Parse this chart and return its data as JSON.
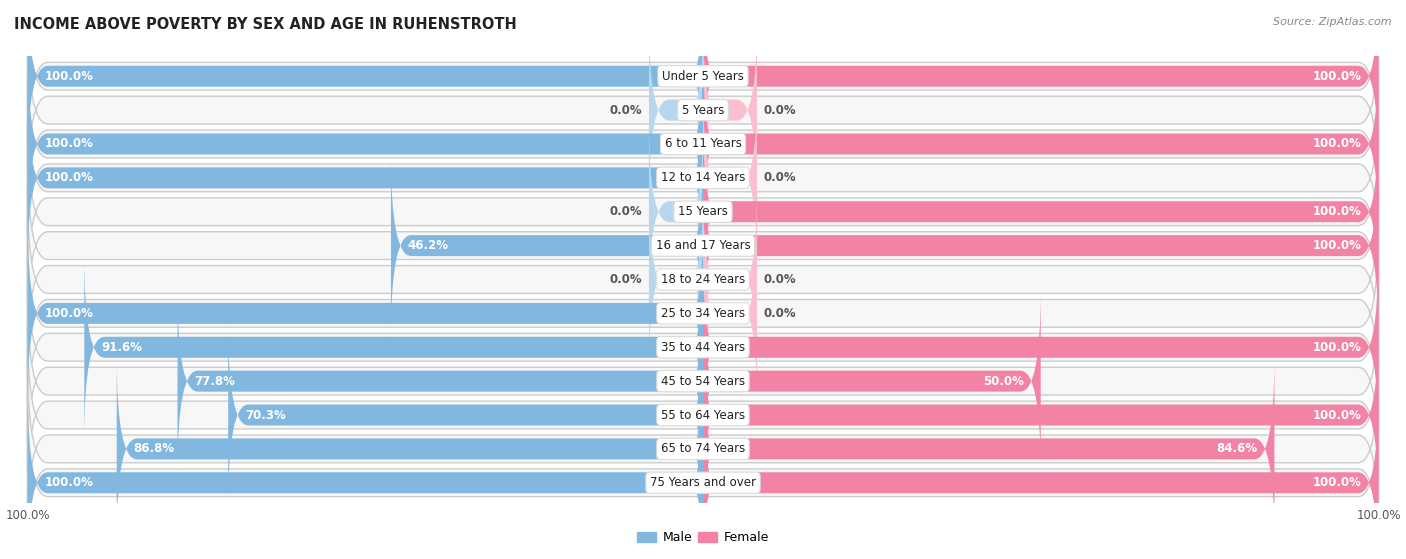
{
  "title": "INCOME ABOVE POVERTY BY SEX AND AGE IN RUHENSTROTH",
  "source": "Source: ZipAtlas.com",
  "categories": [
    "Under 5 Years",
    "5 Years",
    "6 to 11 Years",
    "12 to 14 Years",
    "15 Years",
    "16 and 17 Years",
    "18 to 24 Years",
    "25 to 34 Years",
    "35 to 44 Years",
    "45 to 54 Years",
    "55 to 64 Years",
    "65 to 74 Years",
    "75 Years and over"
  ],
  "male": [
    100.0,
    0.0,
    100.0,
    100.0,
    0.0,
    46.2,
    0.0,
    100.0,
    91.6,
    77.8,
    70.3,
    86.8,
    100.0
  ],
  "female": [
    100.0,
    0.0,
    100.0,
    0.0,
    100.0,
    100.0,
    0.0,
    0.0,
    100.0,
    50.0,
    100.0,
    84.6,
    100.0
  ],
  "male_color": "#82b8df",
  "female_color": "#f283a5",
  "male_zero_color": "#b8d6ee",
  "female_zero_color": "#f9bfce",
  "bg_row_color": "#e8e8e8",
  "bg_row_inner": "#f7f7f7",
  "label_fontsize": 8.5,
  "title_fontsize": 10.5,
  "axis_label_fontsize": 8.5,
  "zero_stub": 8.0
}
